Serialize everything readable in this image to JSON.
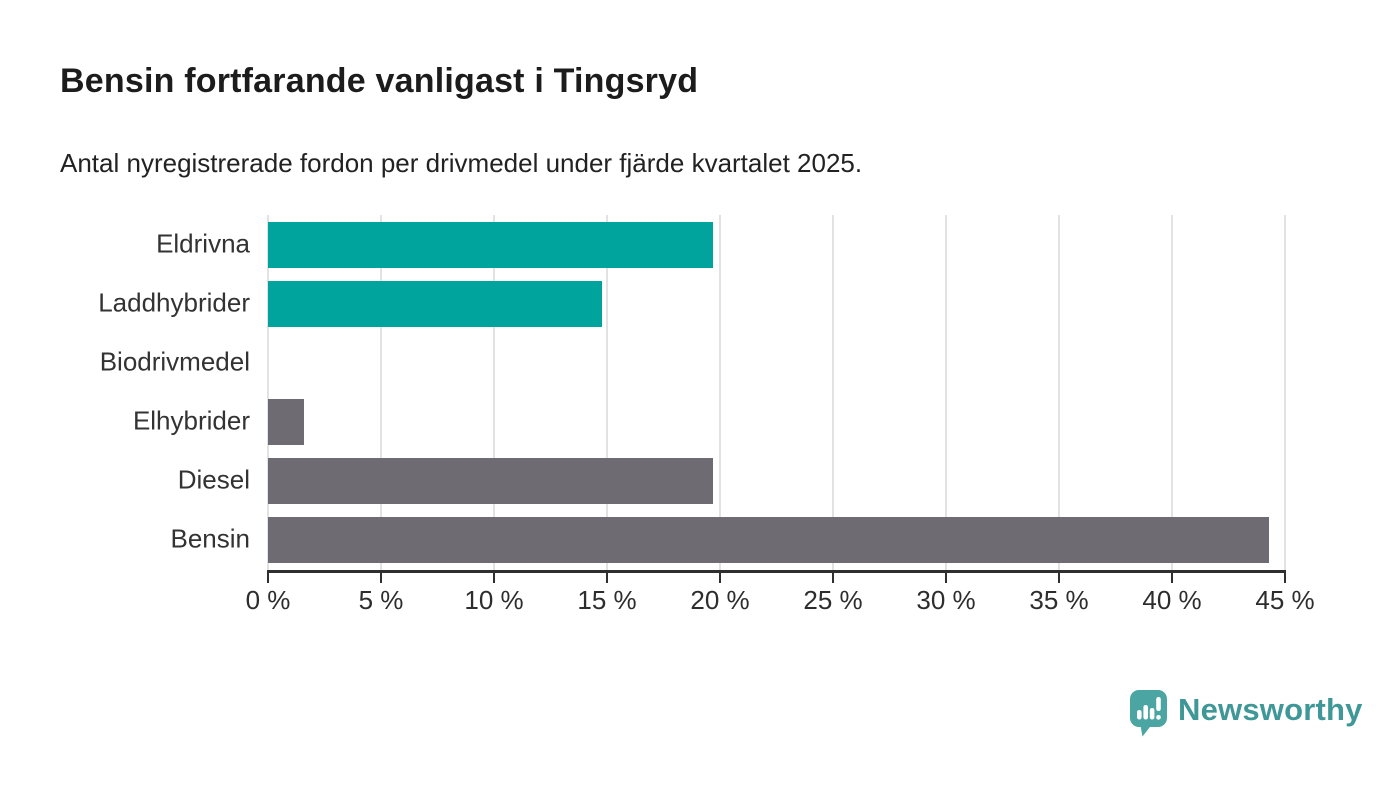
{
  "chart_data": {
    "type": "bar",
    "orientation": "horizontal",
    "title": "Bensin fortfarande vanligast i Tingsryd",
    "subtitle": "Antal nyregistrerade fordon per drivmedel under fjärde kvartalet 2025.",
    "categories": [
      "Eldrivna",
      "Laddhybrider",
      "Biodrivmedel",
      "Elhybrider",
      "Diesel",
      "Bensin"
    ],
    "values": [
      19.7,
      14.8,
      0,
      1.6,
      19.7,
      44.3
    ],
    "unit": "%",
    "bar_colors": [
      "#00a49d",
      "#00a49d",
      "#6e6c72",
      "#6e6c72",
      "#6e6c72",
      "#6e6c72"
    ],
    "xlabel": "",
    "ylabel": "",
    "xlim": [
      0,
      45
    ],
    "x_ticks": [
      0,
      5,
      10,
      15,
      20,
      25,
      30,
      35,
      40,
      45
    ],
    "x_tick_labels": [
      "0 %",
      "5 %",
      "10 %",
      "15 %",
      "20 %",
      "25 %",
      "30 %",
      "35 %",
      "40 %",
      "45 %"
    ],
    "grid": "vertical-only",
    "legend": "none"
  },
  "branding": {
    "logo_text": "Newsworthy",
    "logo_text_color": "#3f9897",
    "logo_icon_color": "#4ba5a2"
  },
  "colors": {
    "background": "#ffffff",
    "accent_teal": "#00a49d",
    "neutral_gray": "#6e6c72",
    "gridline": "#e2e2e2",
    "axis": "#2f2f2f",
    "text": "#1f1f1f"
  }
}
